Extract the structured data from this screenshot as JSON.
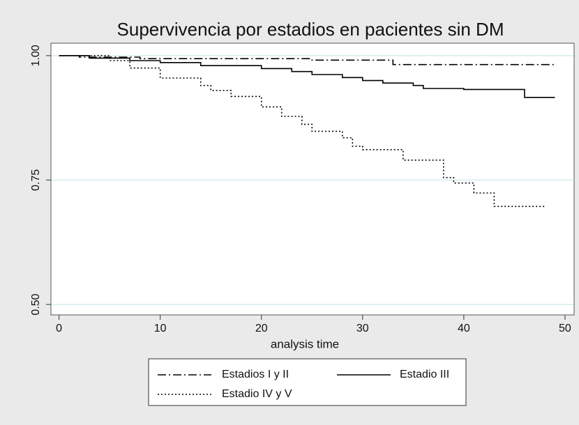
{
  "chart_data": {
    "type": "step",
    "title": "Supervivencia por estadios en pacientes sin DM",
    "x_label": "analysis time",
    "xlim": [
      -0.8,
      50.9
    ],
    "xticks": [
      0,
      10,
      20,
      30,
      40,
      50
    ],
    "ylim": [
      0.479,
      1.025
    ],
    "yticks": [
      {
        "value": 0.5,
        "label": "0.50"
      },
      {
        "value": 0.75,
        "label": "0.75"
      },
      {
        "value": 1,
        "label": "1.00"
      }
    ],
    "grid": true,
    "series": [
      {
        "name": "Estadios I y II",
        "color": "#000000",
        "style": "dashdot",
        "x": [
          0,
          2,
          2,
          8,
          8,
          25,
          25,
          33,
          33,
          49
        ],
        "values": [
          1,
          1,
          0.997,
          0.997,
          0.994,
          0.994,
          0.991,
          0.991,
          0.982,
          0.982
        ]
      },
      {
        "name": "Estadio III",
        "color": "#000000",
        "style": "solid",
        "x": [
          0,
          3,
          3,
          7,
          7,
          10,
          10,
          14,
          14,
          20,
          20,
          23,
          23,
          25,
          25,
          28,
          28,
          30,
          30,
          32,
          32,
          35,
          35,
          36,
          36,
          40,
          40,
          46,
          46,
          49
        ],
        "values": [
          1,
          1,
          0.995,
          0.995,
          0.99,
          0.99,
          0.986,
          0.986,
          0.98,
          0.98,
          0.974,
          0.974,
          0.968,
          0.968,
          0.962,
          0.962,
          0.956,
          0.956,
          0.95,
          0.95,
          0.945,
          0.945,
          0.94,
          0.94,
          0.934,
          0.934,
          0.932,
          0.932,
          0.916,
          0.916
        ]
      },
      {
        "name": "Estadio IV y V",
        "color": "#000000",
        "style": "dot",
        "x": [
          0,
          5,
          5,
          7,
          7,
          10,
          10,
          14,
          14,
          15,
          15,
          17,
          17,
          20,
          20,
          22,
          22,
          24,
          24,
          25,
          25,
          28,
          28,
          29,
          29,
          30,
          30,
          34,
          34,
          38,
          38,
          39,
          39,
          41,
          41,
          43,
          43,
          48
        ],
        "values": [
          1,
          1,
          0.99,
          0.99,
          0.975,
          0.975,
          0.955,
          0.955,
          0.94,
          0.94,
          0.93,
          0.93,
          0.918,
          0.918,
          0.897,
          0.897,
          0.878,
          0.878,
          0.862,
          0.862,
          0.848,
          0.848,
          0.835,
          0.835,
          0.818,
          0.818,
          0.811,
          0.811,
          0.79,
          0.79,
          0.755,
          0.755,
          0.744,
          0.744,
          0.724,
          0.724,
          0.697,
          0.697
        ]
      }
    ]
  }
}
